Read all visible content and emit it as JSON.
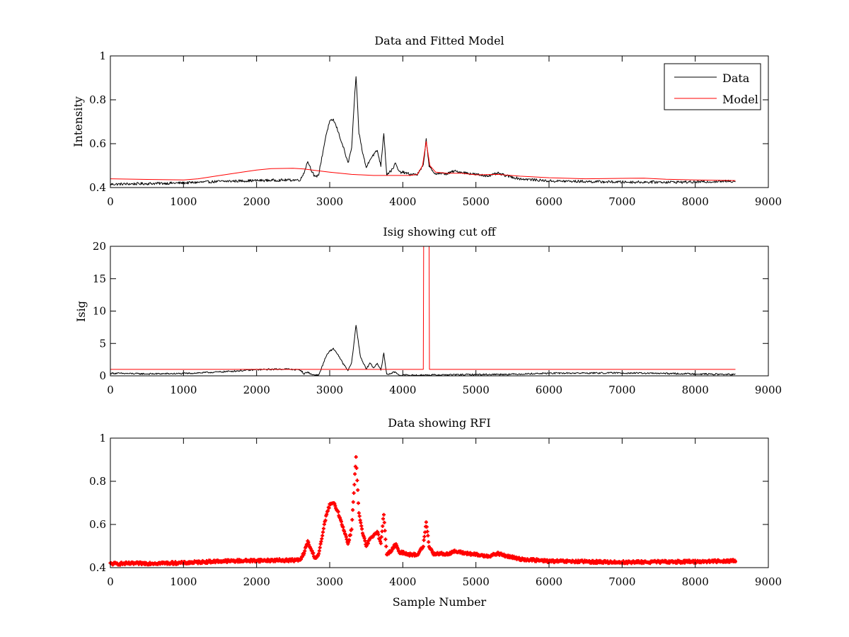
{
  "chart_data": [
    {
      "id": "top",
      "type": "line",
      "title": "Data and Fitted Model",
      "xlabel": "",
      "ylabel": "Intensity",
      "xlim": [
        0,
        9000
      ],
      "ylim": [
        0.4,
        1.0
      ],
      "xticks": [
        0,
        1000,
        2000,
        3000,
        4000,
        5000,
        6000,
        7000,
        8000,
        9000
      ],
      "yticks": [
        0.4,
        0.6,
        0.8,
        1.0
      ],
      "ytick_labels": [
        "0.4",
        "0.6",
        "0.8",
        "1"
      ],
      "grid": false,
      "legend": {
        "placement": "top-right",
        "entries": [
          "Data",
          "Model"
        ]
      },
      "series": [
        {
          "name": "Data",
          "color": "#000000",
          "noise": 0.006,
          "points": [
            [
              0,
              0.415
            ],
            [
              500,
              0.418
            ],
            [
              1000,
              0.421
            ],
            [
              1500,
              0.428
            ],
            [
              2000,
              0.432
            ],
            [
              2600,
              0.435
            ],
            [
              2650,
              0.47
            ],
            [
              2700,
              0.52
            ],
            [
              2750,
              0.48
            ],
            [
              2800,
              0.445
            ],
            [
              2850,
              0.46
            ],
            [
              2900,
              0.55
            ],
            [
              2950,
              0.64
            ],
            [
              3000,
              0.7
            ],
            [
              3050,
              0.71
            ],
            [
              3100,
              0.67
            ],
            [
              3150,
              0.62
            ],
            [
              3200,
              0.57
            ],
            [
              3250,
              0.51
            ],
            [
              3300,
              0.58
            ],
            [
              3330,
              0.75
            ],
            [
              3360,
              0.91
            ],
            [
              3400,
              0.65
            ],
            [
              3450,
              0.56
            ],
            [
              3500,
              0.49
            ],
            [
              3550,
              0.53
            ],
            [
              3600,
              0.55
            ],
            [
              3650,
              0.57
            ],
            [
              3700,
              0.5
            ],
            [
              3740,
              0.65
            ],
            [
              3780,
              0.46
            ],
            [
              3850,
              0.48
            ],
            [
              3900,
              0.51
            ],
            [
              3950,
              0.47
            ],
            [
              4000,
              0.47
            ],
            [
              4100,
              0.46
            ],
            [
              4200,
              0.46
            ],
            [
              4280,
              0.5
            ],
            [
              4320,
              0.62
            ],
            [
              4360,
              0.5
            ],
            [
              4420,
              0.465
            ],
            [
              4500,
              0.465
            ],
            [
              4600,
              0.462
            ],
            [
              4700,
              0.475
            ],
            [
              4800,
              0.47
            ],
            [
              4900,
              0.465
            ],
            [
              5000,
              0.46
            ],
            [
              5100,
              0.455
            ],
            [
              5200,
              0.455
            ],
            [
              5300,
              0.465
            ],
            [
              5400,
              0.455
            ],
            [
              5600,
              0.44
            ],
            [
              6000,
              0.43
            ],
            [
              7000,
              0.425
            ],
            [
              8000,
              0.425
            ],
            [
              8550,
              0.43
            ]
          ]
        },
        {
          "name": "Model",
          "color": "#ff0000",
          "noise": 0,
          "points": [
            [
              0,
              0.44
            ],
            [
              500,
              0.437
            ],
            [
              1000,
              0.435
            ],
            [
              1200,
              0.44
            ],
            [
              1500,
              0.455
            ],
            [
              1800,
              0.47
            ],
            [
              2000,
              0.48
            ],
            [
              2200,
              0.486
            ],
            [
              2500,
              0.488
            ],
            [
              2650,
              0.485
            ],
            [
              2800,
              0.478
            ],
            [
              3000,
              0.47
            ],
            [
              3300,
              0.46
            ],
            [
              3600,
              0.455
            ],
            [
              3900,
              0.455
            ],
            [
              4100,
              0.455
            ],
            [
              4200,
              0.46
            ],
            [
              4270,
              0.5
            ],
            [
              4320,
              0.61
            ],
            [
              4370,
              0.5
            ],
            [
              4450,
              0.47
            ],
            [
              4600,
              0.465
            ],
            [
              4800,
              0.465
            ],
            [
              5000,
              0.458
            ],
            [
              5300,
              0.46
            ],
            [
              5600,
              0.452
            ],
            [
              6000,
              0.445
            ],
            [
              6500,
              0.44
            ],
            [
              7000,
              0.442
            ],
            [
              7300,
              0.443
            ],
            [
              7600,
              0.438
            ],
            [
              8000,
              0.435
            ],
            [
              8550,
              0.432
            ]
          ]
        }
      ]
    },
    {
      "id": "middle",
      "type": "line",
      "title": "Isig showing cut off",
      "xlabel": "",
      "ylabel": "Isig",
      "xlim": [
        0,
        9000
      ],
      "ylim": [
        0,
        20
      ],
      "xticks": [
        0,
        1000,
        2000,
        3000,
        4000,
        5000,
        6000,
        7000,
        8000,
        9000
      ],
      "yticks": [
        0,
        5,
        10,
        15,
        20
      ],
      "ytick_labels": [
        "0",
        "5",
        "10",
        "15",
        "20"
      ],
      "grid": false,
      "series": [
        {
          "name": "",
          "color": "#000000",
          "noise": 0.12,
          "points": [
            [
              0,
              0.4
            ],
            [
              500,
              0.3
            ],
            [
              1000,
              0.35
            ],
            [
              1500,
              0.6
            ],
            [
              2000,
              0.95
            ],
            [
              2400,
              1.05
            ],
            [
              2600,
              0.9
            ],
            [
              2650,
              0.3
            ],
            [
              2700,
              0.6
            ],
            [
              2750,
              0.2
            ],
            [
              2850,
              0.1
            ],
            [
              2950,
              3.0
            ],
            [
              3000,
              3.8
            ],
            [
              3050,
              4.2
            ],
            [
              3100,
              3.5
            ],
            [
              3150,
              2.5
            ],
            [
              3200,
              1.6
            ],
            [
              3250,
              0.8
            ],
            [
              3300,
              2.0
            ],
            [
              3360,
              7.8
            ],
            [
              3420,
              3.0
            ],
            [
              3500,
              1.0
            ],
            [
              3550,
              2.0
            ],
            [
              3600,
              1.2
            ],
            [
              3650,
              2.0
            ],
            [
              3700,
              0.8
            ],
            [
              3740,
              3.5
            ],
            [
              3780,
              0.2
            ],
            [
              3900,
              0.6
            ],
            [
              3950,
              0.1
            ],
            [
              4200,
              0.1
            ],
            [
              4500,
              0.15
            ],
            [
              5000,
              0.2
            ],
            [
              5500,
              0.25
            ],
            [
              6000,
              0.4
            ],
            [
              7000,
              0.45
            ],
            [
              8000,
              0.3
            ],
            [
              8550,
              0.2
            ]
          ]
        },
        {
          "name": "",
          "color": "#ff0000",
          "noise": 0,
          "points": [
            [
              0,
              1.0
            ],
            [
              4280,
              1.0
            ],
            [
              4285,
              20
            ],
            [
              4360,
              20
            ],
            [
              4365,
              1.0
            ],
            [
              8550,
              1.0
            ]
          ]
        }
      ]
    },
    {
      "id": "bottom",
      "type": "scatter",
      "title": "Data showing RFI",
      "xlabel": "Sample Number",
      "ylabel": "",
      "xlim": [
        0,
        9000
      ],
      "ylim": [
        0.4,
        1.0
      ],
      "xticks": [
        0,
        1000,
        2000,
        3000,
        4000,
        5000,
        6000,
        7000,
        8000,
        9000
      ],
      "yticks": [
        0.4,
        0.6,
        0.8,
        1.0
      ],
      "ytick_labels": [
        "0.4",
        "0.6",
        "0.8",
        "1"
      ],
      "grid": false,
      "series": [
        {
          "name": "",
          "color": "#ff0000",
          "marker": "dot",
          "noise": 0.006,
          "points": [
            [
              0,
              0.418
            ],
            [
              500,
              0.42
            ],
            [
              1000,
              0.422
            ],
            [
              1500,
              0.43
            ],
            [
              2000,
              0.433
            ],
            [
              2600,
              0.435
            ],
            [
              2650,
              0.47
            ],
            [
              2700,
              0.52
            ],
            [
              2750,
              0.48
            ],
            [
              2800,
              0.445
            ],
            [
              2850,
              0.46
            ],
            [
              2900,
              0.55
            ],
            [
              2950,
              0.64
            ],
            [
              3000,
              0.69
            ],
            [
              3050,
              0.7
            ],
            [
              3100,
              0.67
            ],
            [
              3150,
              0.62
            ],
            [
              3200,
              0.57
            ],
            [
              3250,
              0.51
            ],
            [
              3300,
              0.58
            ],
            [
              3330,
              0.75
            ],
            [
              3360,
              0.91
            ],
            [
              3400,
              0.65
            ],
            [
              3450,
              0.56
            ],
            [
              3500,
              0.5
            ],
            [
              3550,
              0.53
            ],
            [
              3600,
              0.55
            ],
            [
              3650,
              0.57
            ],
            [
              3700,
              0.51
            ],
            [
              3740,
              0.65
            ],
            [
              3780,
              0.46
            ],
            [
              3850,
              0.48
            ],
            [
              3900,
              0.51
            ],
            [
              3950,
              0.47
            ],
            [
              4000,
              0.47
            ],
            [
              4100,
              0.46
            ],
            [
              4200,
              0.46
            ],
            [
              4280,
              0.5
            ],
            [
              4320,
              0.61
            ],
            [
              4360,
              0.5
            ],
            [
              4420,
              0.465
            ],
            [
              4500,
              0.465
            ],
            [
              4600,
              0.462
            ],
            [
              4700,
              0.475
            ],
            [
              4800,
              0.47
            ],
            [
              4900,
              0.465
            ],
            [
              5000,
              0.46
            ],
            [
              5100,
              0.455
            ],
            [
              5200,
              0.455
            ],
            [
              5300,
              0.465
            ],
            [
              5400,
              0.455
            ],
            [
              5600,
              0.44
            ],
            [
              6000,
              0.43
            ],
            [
              7000,
              0.425
            ],
            [
              8000,
              0.428
            ],
            [
              8550,
              0.432
            ]
          ]
        }
      ]
    }
  ]
}
